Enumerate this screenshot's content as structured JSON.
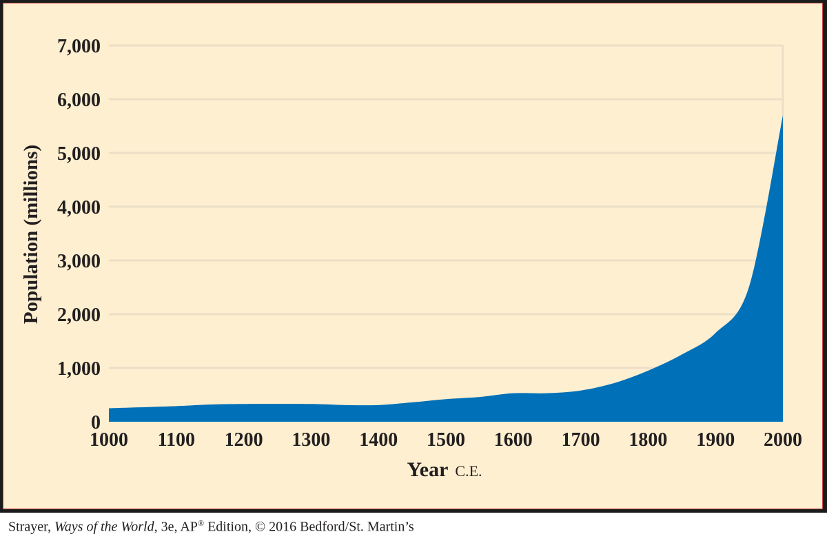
{
  "chart_data": {
    "type": "area",
    "title": "",
    "xlabel": "Year",
    "xlabel_suffix": "C.E.",
    "ylabel": "Population (millions)",
    "xlim": [
      1000,
      2000
    ],
    "ylim": [
      0,
      7000
    ],
    "x_ticks": [
      "1000",
      "1100",
      "1200",
      "1300",
      "1400",
      "1500",
      "1600",
      "1700",
      "1800",
      "1900",
      "2000"
    ],
    "y_ticks": [
      "0",
      "1,000",
      "2,000",
      "3,000",
      "4,000",
      "5,000",
      "6,000",
      "7,000"
    ],
    "grid": true,
    "fill_color": "#0070b8",
    "series": [
      {
        "x": [
          1000,
          1100,
          1150,
          1200,
          1300,
          1350,
          1400,
          1450,
          1500,
          1550,
          1600,
          1650,
          1700,
          1750,
          1800,
          1850,
          1900,
          1950,
          2000
        ],
        "values": [
          250,
          290,
          320,
          330,
          330,
          310,
          310,
          360,
          420,
          460,
          530,
          530,
          580,
          720,
          950,
          1250,
          1650,
          2520,
          5700
        ]
      }
    ]
  },
  "credit": {
    "author": "Strayer,",
    "book": "Ways of the World,",
    "edition_a": "3e, AP",
    "reg_mark": "®",
    "edition_b": "Edition, © 2016 Bedford/St. Martin’s"
  }
}
